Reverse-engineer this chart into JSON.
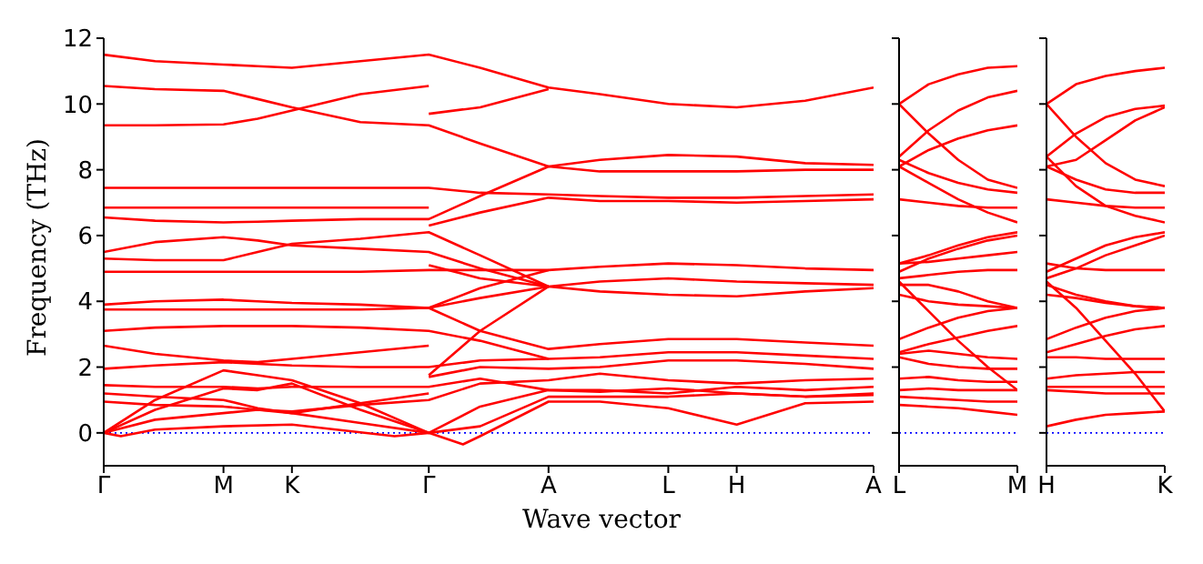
{
  "chart_data": [
    {
      "type": "line",
      "xlabel": "Wave vector",
      "ylabel": "Frequency (THz)",
      "categories": [
        "Γ",
        null,
        null,
        null,
        null,
        null,
        null,
        "M",
        null,
        null,
        null,
        "K",
        null,
        null,
        null,
        null,
        null,
        null,
        null,
        "Γ",
        null,
        null,
        null,
        null,
        null,
        null,
        "A",
        null,
        null,
        null,
        null,
        null,
        null,
        "L",
        null,
        null,
        null,
        "H",
        null,
        null,
        null,
        null,
        null,
        null,
        null,
        "A"
      ],
      "ylim": [
        -1,
        12
      ],
      "yticks": [
        0,
        2,
        4,
        6,
        8,
        10,
        12
      ],
      "ref_lines": [
        {
          "axis": "y",
          "value": 0,
          "color": "#0000ff",
          "line_style": "dotted"
        }
      ],
      "series": [
        {
          "color": "#ff0000",
          "values": [
            11.5,
            null,
            null,
            11.3,
            null,
            null,
            null,
            11.2,
            null,
            11.15,
            null,
            11.1,
            null,
            null,
            null,
            11.3,
            null,
            null,
            null,
            11.5,
            null,
            null,
            11.1,
            null,
            null,
            null,
            10.5,
            null,
            null,
            10.3,
            null,
            null,
            null,
            10.0,
            null,
            null,
            null,
            9.9,
            null,
            null,
            null,
            10.1,
            null,
            null,
            null,
            10.5
          ]
        },
        {
          "color": "#ff0000",
          "values": [
            10.55,
            null,
            null,
            10.45,
            null,
            null,
            null,
            10.4,
            null,
            10.15,
            null,
            9.9,
            null,
            null,
            null,
            9.45,
            null,
            null,
            null,
            9.35,
            null,
            null,
            8.8,
            null,
            null,
            null,
            8.1,
            null,
            null,
            8.3,
            null,
            null,
            null,
            8.45,
            null,
            null,
            null,
            8.4,
            null,
            null,
            null,
            8.2,
            null,
            null,
            null,
            8.15
          ]
        },
        {
          "color": "#ff0000",
          "values": [
            9.35,
            null,
            null,
            9.35,
            null,
            null,
            null,
            9.38,
            null,
            9.55,
            null,
            9.8,
            null,
            null,
            null,
            10.3,
            null,
            null,
            null,
            10.55,
            null,
            null,
            null,
            null,
            null,
            null,
            null,
            null,
            null,
            null,
            null,
            null,
            null,
            null,
            null,
            null,
            null,
            null,
            null,
            null,
            null,
            null,
            null,
            null,
            null,
            null
          ]
        },
        {
          "color": "#ff0000",
          "values": [
            7.45,
            null,
            null,
            7.45,
            null,
            null,
            null,
            7.45,
            null,
            7.45,
            null,
            7.45,
            null,
            null,
            null,
            7.45,
            null,
            null,
            null,
            7.45,
            null,
            null,
            7.3,
            null,
            null,
            null,
            7.25,
            null,
            null,
            7.2,
            null,
            null,
            null,
            7.15,
            null,
            null,
            null,
            7.15,
            null,
            null,
            null,
            7.2,
            null,
            null,
            null,
            7.25
          ]
        },
        {
          "color": "#ff0000",
          "values": [
            6.85,
            null,
            null,
            6.85,
            null,
            null,
            null,
            6.85,
            null,
            6.85,
            null,
            6.85,
            null,
            null,
            null,
            6.85,
            null,
            null,
            null,
            6.85,
            null,
            null,
            null,
            null,
            null,
            null,
            null,
            null,
            null,
            null,
            null,
            null,
            null,
            null,
            null,
            null,
            null,
            null,
            null,
            null,
            null,
            null,
            null,
            null,
            null,
            null
          ]
        },
        {
          "color": "#ff0000",
          "values": [
            6.55,
            null,
            null,
            6.45,
            null,
            null,
            null,
            6.4,
            null,
            6.42,
            null,
            6.45,
            null,
            null,
            null,
            6.5,
            null,
            null,
            null,
            6.5,
            null,
            null,
            7.2,
            null,
            null,
            null,
            8.1,
            null,
            null,
            7.95,
            null,
            null,
            null,
            7.95,
            null,
            null,
            null,
            7.95,
            null,
            null,
            null,
            8.0,
            null,
            null,
            null,
            8.0
          ]
        },
        {
          "color": "#ff0000",
          "values": [
            5.5,
            null,
            null,
            5.8,
            null,
            null,
            null,
            5.95,
            null,
            5.85,
            null,
            5.7,
            null,
            null,
            null,
            5.6,
            null,
            null,
            null,
            5.5,
            null,
            null,
            5.0,
            null,
            null,
            null,
            4.45,
            null,
            null,
            4.6,
            null,
            null,
            null,
            4.7,
            null,
            null,
            null,
            4.6,
            null,
            null,
            null,
            4.55,
            null,
            null,
            null,
            4.5
          ]
        },
        {
          "color": "#ff0000",
          "values": [
            5.3,
            null,
            null,
            5.25,
            null,
            null,
            null,
            5.25,
            null,
            5.5,
            null,
            5.75,
            null,
            null,
            null,
            5.9,
            null,
            null,
            null,
            6.1,
            null,
            null,
            5.4,
            null,
            null,
            null,
            4.45,
            null,
            null,
            4.3,
            null,
            null,
            null,
            4.2,
            null,
            null,
            null,
            4.15,
            null,
            null,
            null,
            4.3,
            null,
            null,
            null,
            4.4
          ]
        },
        {
          "color": "#ff0000",
          "values": [
            4.9,
            null,
            null,
            4.9,
            null,
            null,
            null,
            4.9,
            null,
            4.9,
            null,
            4.9,
            null,
            null,
            null,
            4.9,
            null,
            null,
            null,
            4.95,
            null,
            null,
            4.95,
            null,
            null,
            null,
            4.95,
            null,
            null,
            5.05,
            null,
            null,
            null,
            5.15,
            null,
            null,
            null,
            5.1,
            null,
            null,
            null,
            5.0,
            null,
            null,
            null,
            4.95
          ]
        },
        {
          "color": "#ff0000",
          "values": [
            3.9,
            null,
            null,
            4.0,
            null,
            null,
            null,
            4.05,
            null,
            4.0,
            null,
            3.95,
            null,
            null,
            null,
            3.9,
            null,
            null,
            null,
            3.8,
            null,
            null,
            4.4,
            null,
            null,
            null,
            4.95,
            null,
            null,
            null,
            null,
            null,
            null,
            null,
            null,
            null,
            null,
            null,
            null,
            null,
            null,
            null,
            null,
            null,
            null,
            null
          ]
        },
        {
          "color": "#ff0000",
          "values": [
            3.75,
            null,
            null,
            3.75,
            null,
            null,
            null,
            3.75,
            null,
            3.75,
            null,
            3.75,
            null,
            null,
            null,
            3.75,
            null,
            null,
            null,
            3.8,
            null,
            null,
            3.1,
            null,
            null,
            null,
            2.55,
            null,
            null,
            2.7,
            null,
            null,
            null,
            2.85,
            null,
            null,
            null,
            2.85,
            null,
            null,
            null,
            2.75,
            null,
            null,
            null,
            2.65
          ]
        },
        {
          "color": "#ff0000",
          "values": [
            3.1,
            null,
            null,
            3.2,
            null,
            null,
            null,
            3.25,
            null,
            3.25,
            null,
            3.25,
            null,
            null,
            null,
            3.2,
            null,
            null,
            null,
            3.1,
            null,
            null,
            2.8,
            null,
            null,
            null,
            2.25,
            null,
            null,
            2.3,
            null,
            null,
            null,
            2.45,
            null,
            null,
            null,
            2.45,
            null,
            null,
            null,
            2.35,
            null,
            null,
            null,
            2.25
          ]
        },
        {
          "color": "#ff0000",
          "values": [
            2.65,
            null,
            null,
            2.4,
            null,
            null,
            null,
            2.2,
            null,
            2.15,
            null,
            2.25,
            null,
            null,
            null,
            2.45,
            null,
            null,
            null,
            2.65,
            null,
            null,
            null,
            null,
            null,
            null,
            null,
            null,
            null,
            null,
            null,
            null,
            null,
            null,
            null,
            null,
            null,
            null,
            null,
            null,
            null,
            null,
            null,
            null,
            null,
            null
          ]
        },
        {
          "color": "#ff0000",
          "values": [
            1.95,
            null,
            null,
            2.05,
            null,
            null,
            null,
            2.15,
            null,
            2.1,
            null,
            2.05,
            null,
            null,
            null,
            2.0,
            null,
            null,
            null,
            2.0,
            null,
            null,
            2.2,
            null,
            null,
            null,
            2.25,
            null,
            null,
            null,
            null,
            null,
            null,
            null,
            null,
            null,
            null,
            null,
            null,
            null,
            null,
            null,
            null,
            null,
            null,
            null
          ]
        },
        {
          "color": "#ff0000",
          "values": [
            0,
            null,
            null,
            1.0,
            null,
            null,
            null,
            1.9,
            null,
            1.75,
            null,
            1.6,
            null,
            null,
            null,
            0.9,
            null,
            null,
            null,
            0,
            null,
            null,
            0.8,
            null,
            null,
            null,
            1.3,
            null,
            null,
            1.3,
            null,
            null,
            null,
            1.2,
            null,
            null,
            null,
            1.4,
            null,
            null,
            null,
            1.3,
            null,
            null,
            null,
            1.4
          ]
        },
        {
          "color": "#ff0000",
          "values": [
            0,
            null,
            null,
            0.7,
            null,
            null,
            null,
            1.35,
            null,
            1.3,
            null,
            1.5,
            null,
            null,
            null,
            0.7,
            null,
            null,
            null,
            0,
            null,
            null,
            0.2,
            null,
            null,
            null,
            1.1,
            null,
            null,
            1.1,
            null,
            null,
            null,
            1.1,
            null,
            null,
            null,
            1.2,
            null,
            null,
            null,
            1.1,
            null,
            null,
            null,
            1.15
          ]
        },
        {
          "color": "#ff0000",
          "values": [
            1.45,
            null,
            null,
            1.4,
            null,
            null,
            null,
            1.4,
            null,
            1.35,
            null,
            1.4,
            null,
            null,
            null,
            1.4,
            null,
            null,
            null,
            1.4,
            null,
            null,
            1.65,
            null,
            null,
            null,
            1.3,
            null,
            null,
            1.25,
            null,
            null,
            null,
            1.35,
            null,
            null,
            null,
            1.2,
            null,
            null,
            null,
            1.1,
            null,
            null,
            null,
            1.2
          ]
        },
        {
          "color": "#ff0000",
          "values": [
            1.2,
            null,
            null,
            1.1,
            null,
            null,
            null,
            1.0,
            null,
            0.75,
            null,
            0.6,
            null,
            null,
            null,
            0.9,
            null,
            null,
            null,
            1.2,
            null,
            null,
            null,
            null,
            null,
            null,
            null,
            null,
            null,
            null,
            null,
            null,
            null,
            null,
            null,
            null,
            null,
            null,
            null,
            null,
            null,
            null,
            null,
            null,
            null,
            null
          ]
        },
        {
          "color": "#ff0000",
          "values": [
            0.95,
            null,
            null,
            0.85,
            null,
            null,
            null,
            0.8,
            null,
            0.7,
            null,
            0.65,
            null,
            null,
            null,
            0.85,
            null,
            null,
            null,
            1.0,
            null,
            null,
            1.5,
            null,
            null,
            null,
            1.6,
            null,
            null,
            1.8,
            null,
            null,
            null,
            1.6,
            null,
            null,
            null,
            1.5,
            null,
            null,
            null,
            1.6,
            null,
            null,
            null,
            1.65
          ]
        },
        {
          "color": "#ff0000",
          "values": [
            0,
            null,
            null,
            0.4,
            null,
            null,
            null,
            0.6,
            null,
            0.7,
            null,
            0.6,
            null,
            null,
            null,
            0.3,
            null,
            null,
            null,
            0,
            null,
            -0.35,
            -0.1,
            null,
            null,
            null,
            0.95,
            null,
            null,
            0.95,
            null,
            null,
            null,
            0.75,
            null,
            null,
            null,
            0.25,
            null,
            null,
            null,
            0.9,
            null,
            null,
            null,
            0.95
          ]
        },
        {
          "color": "#ff0000",
          "values": [
            0,
            -0.1,
            null,
            0.1,
            null,
            null,
            null,
            0.2,
            null,
            null,
            null,
            0.25,
            null,
            null,
            null,
            null,
            null,
            -0.1,
            null,
            0,
            null,
            null,
            null,
            null,
            null,
            null,
            null,
            null,
            null,
            null,
            null,
            null,
            null,
            null,
            null,
            null,
            null,
            null,
            null,
            null,
            null,
            null,
            null,
            null,
            null,
            null
          ]
        },
        {
          "color": "#ff0000",
          "values": [
            null,
            null,
            null,
            null,
            null,
            null,
            null,
            null,
            null,
            null,
            null,
            null,
            null,
            null,
            null,
            null,
            null,
            null,
            null,
            9.7,
            null,
            null,
            9.9,
            null,
            null,
            null,
            10.45,
            null,
            null,
            null,
            null,
            null,
            null,
            null,
            null,
            null,
            null,
            null,
            null,
            null,
            null,
            null,
            null,
            null,
            null,
            null
          ]
        },
        {
          "color": "#ff0000",
          "values": [
            null,
            null,
            null,
            null,
            null,
            null,
            null,
            null,
            null,
            null,
            null,
            null,
            null,
            null,
            null,
            null,
            null,
            null,
            null,
            6.3,
            null,
            null,
            6.7,
            null,
            null,
            null,
            7.15,
            null,
            null,
            7.05,
            null,
            null,
            null,
            7.05,
            null,
            null,
            null,
            7.0,
            null,
            null,
            null,
            7.05,
            null,
            null,
            null,
            7.1
          ]
        },
        {
          "color": "#ff0000",
          "values": [
            null,
            null,
            null,
            null,
            null,
            null,
            null,
            null,
            null,
            null,
            null,
            null,
            null,
            null,
            null,
            null,
            null,
            null,
            null,
            3.8,
            null,
            null,
            4.1,
            null,
            null,
            null,
            4.45,
            null,
            null,
            null,
            null,
            null,
            null,
            null,
            null,
            null,
            null,
            null,
            null,
            null,
            null,
            null,
            null,
            null,
            null,
            null
          ]
        },
        {
          "color": "#ff0000",
          "values": [
            null,
            null,
            null,
            null,
            null,
            null,
            null,
            null,
            null,
            null,
            null,
            null,
            null,
            null,
            null,
            null,
            null,
            null,
            null,
            5.1,
            null,
            null,
            4.7,
            null,
            null,
            null,
            4.45,
            null,
            null,
            null,
            null,
            null,
            null,
            null,
            null,
            null,
            null,
            null,
            null,
            null,
            null,
            null,
            null,
            null,
            null,
            null
          ]
        },
        {
          "color": "#ff0000",
          "values": [
            null,
            null,
            null,
            null,
            null,
            null,
            null,
            null,
            null,
            null,
            null,
            null,
            null,
            null,
            null,
            null,
            null,
            null,
            null,
            1.75,
            null,
            null,
            3.1,
            null,
            null,
            null,
            4.45,
            null,
            null,
            null,
            null,
            null,
            null,
            null,
            null,
            null,
            null,
            null,
            null,
            null,
            null,
            null,
            null,
            null,
            null,
            null
          ]
        },
        {
          "color": "#ff0000",
          "values": [
            null,
            null,
            null,
            null,
            null,
            null,
            null,
            null,
            null,
            null,
            null,
            null,
            null,
            null,
            null,
            null,
            null,
            null,
            null,
            1.7,
            null,
            null,
            2.0,
            null,
            null,
            null,
            1.95,
            null,
            null,
            2.0,
            null,
            null,
            null,
            2.2,
            null,
            null,
            null,
            2.2,
            null,
            null,
            null,
            2.1,
            null,
            null,
            null,
            1.95
          ]
        }
      ]
    },
    {
      "type": "line",
      "categories": [
        "L",
        null,
        null,
        null,
        "M"
      ],
      "ylim": [
        -1,
        12
      ],
      "yticks": [
        0,
        2,
        4,
        6,
        8,
        10,
        12
      ],
      "tick_labels": "x",
      "ref_lines": [
        {
          "axis": "y",
          "value": 0,
          "color": "#0000ff",
          "line_style": "dotted"
        }
      ],
      "series": [
        {
          "color": "#ff0000",
          "values": [
            10.0,
            10.6,
            10.9,
            11.1,
            11.15
          ]
        },
        {
          "color": "#ff0000",
          "values": [
            8.4,
            9.2,
            9.8,
            10.2,
            10.4
          ]
        },
        {
          "color": "#ff0000",
          "values": [
            8.1,
            8.6,
            8.95,
            9.2,
            9.35
          ]
        },
        {
          "color": "#ff0000",
          "values": [
            10.0,
            9.1,
            8.3,
            7.7,
            7.45
          ]
        },
        {
          "color": "#ff0000",
          "values": [
            8.3,
            7.9,
            7.6,
            7.4,
            7.3
          ]
        },
        {
          "color": "#ff0000",
          "values": [
            7.1,
            7.0,
            6.9,
            6.85,
            6.85
          ]
        },
        {
          "color": "#ff0000",
          "values": [
            8.1,
            7.6,
            7.1,
            6.7,
            6.4
          ]
        },
        {
          "color": "#ff0000",
          "values": [
            5.15,
            5.4,
            5.7,
            5.95,
            6.1
          ]
        },
        {
          "color": "#ff0000",
          "values": [
            4.9,
            5.3,
            5.6,
            5.85,
            6.0
          ]
        },
        {
          "color": "#ff0000",
          "values": [
            5.15,
            5.2,
            5.3,
            5.4,
            5.5
          ]
        },
        {
          "color": "#ff0000",
          "values": [
            4.7,
            4.8,
            4.9,
            4.95,
            4.95
          ]
        },
        {
          "color": "#ff0000",
          "values": [
            4.5,
            4.5,
            4.3,
            4.0,
            3.8
          ]
        },
        {
          "color": "#ff0000",
          "values": [
            4.2,
            4.0,
            3.9,
            3.85,
            3.8
          ]
        },
        {
          "color": "#ff0000",
          "values": [
            4.6,
            3.7,
            2.8,
            2.0,
            1.3
          ]
        },
        {
          "color": "#ff0000",
          "values": [
            2.85,
            3.2,
            3.5,
            3.7,
            3.8
          ]
        },
        {
          "color": "#ff0000",
          "values": [
            2.45,
            2.7,
            2.9,
            3.1,
            3.25
          ]
        },
        {
          "color": "#ff0000",
          "values": [
            2.4,
            2.5,
            2.4,
            2.3,
            2.25
          ]
        },
        {
          "color": "#ff0000",
          "values": [
            2.3,
            2.1,
            2.0,
            1.95,
            1.95
          ]
        },
        {
          "color": "#ff0000",
          "values": [
            1.65,
            1.7,
            1.6,
            1.55,
            1.55
          ]
        },
        {
          "color": "#ff0000",
          "values": [
            1.3,
            1.35,
            1.3,
            1.3,
            1.3
          ]
        },
        {
          "color": "#ff0000",
          "values": [
            1.1,
            1.05,
            1.0,
            0.95,
            0.95
          ]
        },
        {
          "color": "#ff0000",
          "values": [
            0.85,
            0.8,
            0.75,
            0.65,
            0.55
          ]
        }
      ]
    },
    {
      "type": "line",
      "categories": [
        "H",
        null,
        null,
        null,
        "K"
      ],
      "ylim": [
        -1,
        12
      ],
      "yticks": [
        0,
        2,
        4,
        6,
        8,
        10,
        12
      ],
      "tick_labels": "x",
      "ref_lines": [
        {
          "axis": "y",
          "value": 0,
          "color": "#0000ff",
          "line_style": "dotted"
        }
      ],
      "series": [
        {
          "color": "#ff0000",
          "values": [
            10.0,
            10.6,
            10.85,
            11.0,
            11.1
          ]
        },
        {
          "color": "#ff0000",
          "values": [
            8.4,
            9.1,
            9.6,
            9.85,
            9.95
          ]
        },
        {
          "color": "#ff0000",
          "values": [
            10.0,
            9.0,
            8.2,
            7.7,
            7.5
          ]
        },
        {
          "color": "#ff0000",
          "values": [
            8.1,
            8.3,
            8.9,
            9.5,
            9.9
          ]
        },
        {
          "color": "#ff0000",
          "values": [
            8.1,
            7.7,
            7.4,
            7.3,
            7.3
          ]
        },
        {
          "color": "#ff0000",
          "values": [
            7.1,
            7.0,
            6.9,
            6.85,
            6.85
          ]
        },
        {
          "color": "#ff0000",
          "values": [
            8.4,
            7.5,
            6.9,
            6.6,
            6.4
          ]
        },
        {
          "color": "#ff0000",
          "values": [
            4.9,
            5.3,
            5.7,
            5.95,
            6.1
          ]
        },
        {
          "color": "#ff0000",
          "values": [
            5.15,
            5.0,
            4.95,
            4.95,
            4.95
          ]
        },
        {
          "color": "#ff0000",
          "values": [
            4.7,
            5.0,
            5.4,
            5.7,
            6.0
          ]
        },
        {
          "color": "#ff0000",
          "values": [
            4.5,
            4.2,
            4.0,
            3.85,
            3.8
          ]
        },
        {
          "color": "#ff0000",
          "values": [
            4.2,
            4.1,
            3.95,
            3.85,
            3.8
          ]
        },
        {
          "color": "#ff0000",
          "values": [
            4.6,
            3.8,
            2.8,
            1.8,
            0.65
          ]
        },
        {
          "color": "#ff0000",
          "values": [
            2.85,
            3.2,
            3.5,
            3.7,
            3.8
          ]
        },
        {
          "color": "#ff0000",
          "values": [
            2.45,
            2.7,
            2.95,
            3.15,
            3.25
          ]
        },
        {
          "color": "#ff0000",
          "values": [
            2.3,
            2.3,
            2.25,
            2.25,
            2.25
          ]
        },
        {
          "color": "#ff0000",
          "values": [
            1.65,
            1.75,
            1.8,
            1.85,
            1.85
          ]
        },
        {
          "color": "#ff0000",
          "values": [
            1.4,
            1.4,
            1.4,
            1.4,
            1.4
          ]
        },
        {
          "color": "#ff0000",
          "values": [
            1.3,
            1.25,
            1.2,
            1.2,
            1.2
          ]
        },
        {
          "color": "#ff0000",
          "values": [
            0.2,
            0.4,
            0.55,
            0.6,
            0.65
          ]
        }
      ]
    }
  ]
}
